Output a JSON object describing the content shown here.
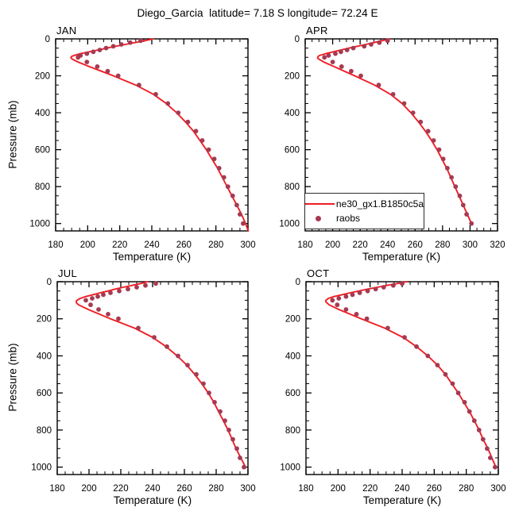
{
  "title": "Diego_Garcia  latitude= 7.18 S longitude= 72.24 E",
  "axes": {
    "x_label": "Temperature (K)",
    "y_label": "Pressure (mb)"
  },
  "legend": {
    "model_label": "ne30_gx1.B1850c5a",
    "obs_label": "raobs"
  },
  "colors": {
    "model_line": "#f01e24",
    "raobs_dot": "#a63a52",
    "axis": "#000000",
    "background": "#ffffff"
  },
  "chart_data": {
    "type": "line",
    "title": "Diego_Garcia  latitude= 7.18 S longitude= 72.24 E",
    "xlabel": "Temperature (K)",
    "ylabel": "Pressure (mb)",
    "x_axis": {
      "minor_step": 5
    },
    "y_axis": {
      "range": [
        0,
        1040
      ],
      "ticks": [
        0,
        200,
        400,
        600,
        800,
        1000
      ],
      "minor_step": 50,
      "inverted": true
    },
    "series_meta": [
      {
        "name": "ne30_gx1.B1850c5a",
        "type": "line",
        "color": "#f01e24"
      },
      {
        "name": "raobs",
        "type": "scatter",
        "color": "#a63a52"
      }
    ],
    "panels": [
      {
        "label": "JAN",
        "x_range": [
          180,
          300
        ],
        "x_ticks": [
          180,
          200,
          220,
          240,
          260,
          280,
          300
        ],
        "model": [
          [
            0,
            241
          ],
          [
            10,
            235.5
          ],
          [
            20,
            229.5
          ],
          [
            30,
            223.5
          ],
          [
            40,
            217.5
          ],
          [
            50,
            212
          ],
          [
            60,
            206.5
          ],
          [
            70,
            201
          ],
          [
            80,
            195.5
          ],
          [
            90,
            191.5
          ],
          [
            95,
            190
          ],
          [
            100,
            189.5
          ],
          [
            105,
            189.7
          ],
          [
            110,
            190.5
          ],
          [
            125,
            194
          ],
          [
            150,
            201
          ],
          [
            175,
            208.5
          ],
          [
            200,
            216
          ],
          [
            250,
            230
          ],
          [
            300,
            241
          ],
          [
            350,
            249
          ],
          [
            400,
            255.5
          ],
          [
            450,
            261
          ],
          [
            500,
            266
          ],
          [
            550,
            270
          ],
          [
            600,
            274
          ],
          [
            650,
            277.5
          ],
          [
            700,
            281
          ],
          [
            750,
            284
          ],
          [
            800,
            287
          ],
          [
            850,
            290
          ],
          [
            900,
            293
          ],
          [
            950,
            296
          ],
          [
            1000,
            298.5
          ],
          [
            1040,
            300.2
          ]
        ],
        "raobs": [
          [
            10,
            233
          ],
          [
            20,
            226.5
          ],
          [
            30,
            221
          ],
          [
            40,
            216
          ],
          [
            50,
            211.5
          ],
          [
            60,
            207.5
          ],
          [
            70,
            203.5
          ],
          [
            80,
            199.5
          ],
          [
            90,
            195.5
          ],
          [
            100,
            194
          ],
          [
            125,
            199.5
          ],
          [
            150,
            206
          ],
          [
            175,
            212.5
          ],
          [
            200,
            219
          ],
          [
            250,
            232
          ],
          [
            300,
            242.5
          ],
          [
            350,
            250
          ],
          [
            400,
            256.5
          ],
          [
            450,
            262.5
          ],
          [
            500,
            267.5
          ],
          [
            550,
            271.5
          ],
          [
            600,
            275.5
          ],
          [
            650,
            279
          ],
          [
            700,
            282
          ],
          [
            750,
            285
          ],
          [
            800,
            287.5
          ],
          [
            850,
            290.5
          ],
          [
            900,
            293
          ],
          [
            950,
            295
          ],
          [
            1000,
            297
          ]
        ]
      },
      {
        "label": "APR",
        "x_range": [
          180,
          320
        ],
        "x_ticks": [
          180,
          200,
          220,
          240,
          260,
          280,
          300,
          320
        ],
        "model": [
          [
            0,
            241.5
          ],
          [
            10,
            236
          ],
          [
            20,
            230
          ],
          [
            30,
            224
          ],
          [
            40,
            218
          ],
          [
            50,
            212
          ],
          [
            60,
            206
          ],
          [
            70,
            200.5
          ],
          [
            80,
            195
          ],
          [
            90,
            190.5
          ],
          [
            95,
            189.5
          ],
          [
            100,
            189
          ],
          [
            105,
            189.2
          ],
          [
            110,
            190
          ],
          [
            125,
            193.5
          ],
          [
            150,
            201
          ],
          [
            175,
            208.5
          ],
          [
            200,
            216
          ],
          [
            250,
            230.5
          ],
          [
            300,
            242
          ],
          [
            350,
            250.5
          ],
          [
            400,
            257
          ],
          [
            450,
            262.5
          ],
          [
            500,
            267.5
          ],
          [
            550,
            272
          ],
          [
            600,
            276
          ],
          [
            650,
            279.5
          ],
          [
            700,
            283
          ],
          [
            750,
            286
          ],
          [
            800,
            289
          ],
          [
            850,
            292
          ],
          [
            900,
            295
          ],
          [
            950,
            298
          ],
          [
            1000,
            301
          ]
        ],
        "raobs": [
          [
            10,
            240
          ],
          [
            20,
            234
          ],
          [
            30,
            228
          ],
          [
            40,
            223
          ],
          [
            50,
            215
          ],
          [
            60,
            210.5
          ],
          [
            70,
            206
          ],
          [
            80,
            202
          ],
          [
            90,
            197
          ],
          [
            100,
            194
          ],
          [
            125,
            200
          ],
          [
            150,
            206.5
          ],
          [
            175,
            213.5
          ],
          [
            200,
            220.5
          ],
          [
            250,
            233.5
          ],
          [
            300,
            244
          ],
          [
            350,
            252
          ],
          [
            400,
            258.5
          ],
          [
            450,
            264
          ],
          [
            500,
            269.5
          ],
          [
            550,
            273.5
          ],
          [
            600,
            277.5
          ],
          [
            650,
            280.5
          ],
          [
            700,
            283.5
          ],
          [
            750,
            286.5
          ],
          [
            800,
            289.5
          ],
          [
            850,
            292.5
          ],
          [
            900,
            295
          ],
          [
            950,
            297.5
          ],
          [
            1000,
            301
          ]
        ]
      },
      {
        "label": "JUL",
        "x_range": [
          180,
          300
        ],
        "x_ticks": [
          180,
          200,
          220,
          240,
          260,
          280,
          300
        ],
        "model": [
          [
            0,
            237
          ],
          [
            10,
            232.5
          ],
          [
            20,
            227
          ],
          [
            30,
            221.5
          ],
          [
            40,
            216.5
          ],
          [
            50,
            212
          ],
          [
            60,
            207
          ],
          [
            70,
            202.5
          ],
          [
            80,
            198
          ],
          [
            90,
            194.5
          ],
          [
            100,
            192.5
          ],
          [
            105,
            192
          ],
          [
            110,
            192
          ],
          [
            115,
            192.2
          ],
          [
            125,
            193.5
          ],
          [
            150,
            199.5
          ],
          [
            175,
            206.5
          ],
          [
            200,
            213.5
          ],
          [
            250,
            228.5
          ],
          [
            300,
            240
          ],
          [
            350,
            248.5
          ],
          [
            400,
            255.5
          ],
          [
            450,
            261.5
          ],
          [
            500,
            266.5
          ],
          [
            550,
            271
          ],
          [
            600,
            275
          ],
          [
            650,
            278.5
          ],
          [
            700,
            281.5
          ],
          [
            750,
            284.5
          ],
          [
            800,
            287.5
          ],
          [
            850,
            290
          ],
          [
            900,
            292.5
          ],
          [
            950,
            295.5
          ],
          [
            1000,
            298.5
          ]
        ],
        "raobs": [
          [
            10,
            242
          ],
          [
            20,
            235.5
          ],
          [
            30,
            230
          ],
          [
            40,
            224.5
          ],
          [
            50,
            219
          ],
          [
            60,
            213.5
          ],
          [
            70,
            209
          ],
          [
            80,
            205.5
          ],
          [
            90,
            202
          ],
          [
            100,
            198
          ],
          [
            125,
            201
          ],
          [
            150,
            206
          ],
          [
            175,
            212
          ],
          [
            200,
            218.5
          ],
          [
            250,
            231
          ],
          [
            300,
            241
          ],
          [
            350,
            249
          ],
          [
            400,
            256
          ],
          [
            450,
            262
          ],
          [
            500,
            267.5
          ],
          [
            550,
            272
          ],
          [
            600,
            275.5
          ],
          [
            650,
            279
          ],
          [
            700,
            282.5
          ],
          [
            750,
            285.5
          ],
          [
            800,
            288
          ],
          [
            850,
            290.5
          ],
          [
            900,
            293
          ],
          [
            950,
            295
          ],
          [
            1000,
            297.5
          ]
        ]
      },
      {
        "label": "OCT",
        "x_range": [
          180,
          300
        ],
        "x_ticks": [
          180,
          200,
          220,
          240,
          260,
          280,
          300
        ],
        "model": [
          [
            0,
            243
          ],
          [
            10,
            237
          ],
          [
            20,
            230.5
          ],
          [
            30,
            224.5
          ],
          [
            40,
            218.5
          ],
          [
            50,
            213
          ],
          [
            60,
            207.5
          ],
          [
            70,
            202.5
          ],
          [
            80,
            197.5
          ],
          [
            90,
            194
          ],
          [
            100,
            192.5
          ],
          [
            105,
            192.3
          ],
          [
            110,
            192.5
          ],
          [
            125,
            194.5
          ],
          [
            150,
            200.5
          ],
          [
            175,
            207.5
          ],
          [
            200,
            214.5
          ],
          [
            250,
            229
          ],
          [
            300,
            240.5
          ],
          [
            350,
            249
          ],
          [
            400,
            256
          ],
          [
            450,
            262
          ],
          [
            500,
            267
          ],
          [
            550,
            271
          ],
          [
            600,
            275
          ],
          [
            650,
            278.5
          ],
          [
            700,
            282
          ],
          [
            750,
            285
          ],
          [
            800,
            288
          ],
          [
            850,
            290.5
          ],
          [
            900,
            293.5
          ],
          [
            950,
            296
          ],
          [
            1000,
            298.5
          ]
        ],
        "raobs": [
          [
            10,
            240
          ],
          [
            20,
            234.5
          ],
          [
            30,
            228.5
          ],
          [
            40,
            223.5
          ],
          [
            50,
            218.5
          ],
          [
            60,
            213.5
          ],
          [
            70,
            209
          ],
          [
            80,
            205
          ],
          [
            90,
            200.5
          ],
          [
            100,
            196.5
          ],
          [
            125,
            199.5
          ],
          [
            150,
            205
          ],
          [
            175,
            211.5
          ],
          [
            200,
            218
          ],
          [
            250,
            231
          ],
          [
            300,
            241.5
          ],
          [
            350,
            249
          ],
          [
            400,
            256
          ],
          [
            450,
            262
          ],
          [
            500,
            267
          ],
          [
            550,
            271.5
          ],
          [
            600,
            275
          ],
          [
            650,
            279
          ],
          [
            700,
            282
          ],
          [
            750,
            285
          ],
          [
            800,
            288
          ],
          [
            850,
            290.5
          ],
          [
            900,
            293
          ],
          [
            950,
            295
          ],
          [
            1000,
            298
          ]
        ]
      }
    ]
  }
}
